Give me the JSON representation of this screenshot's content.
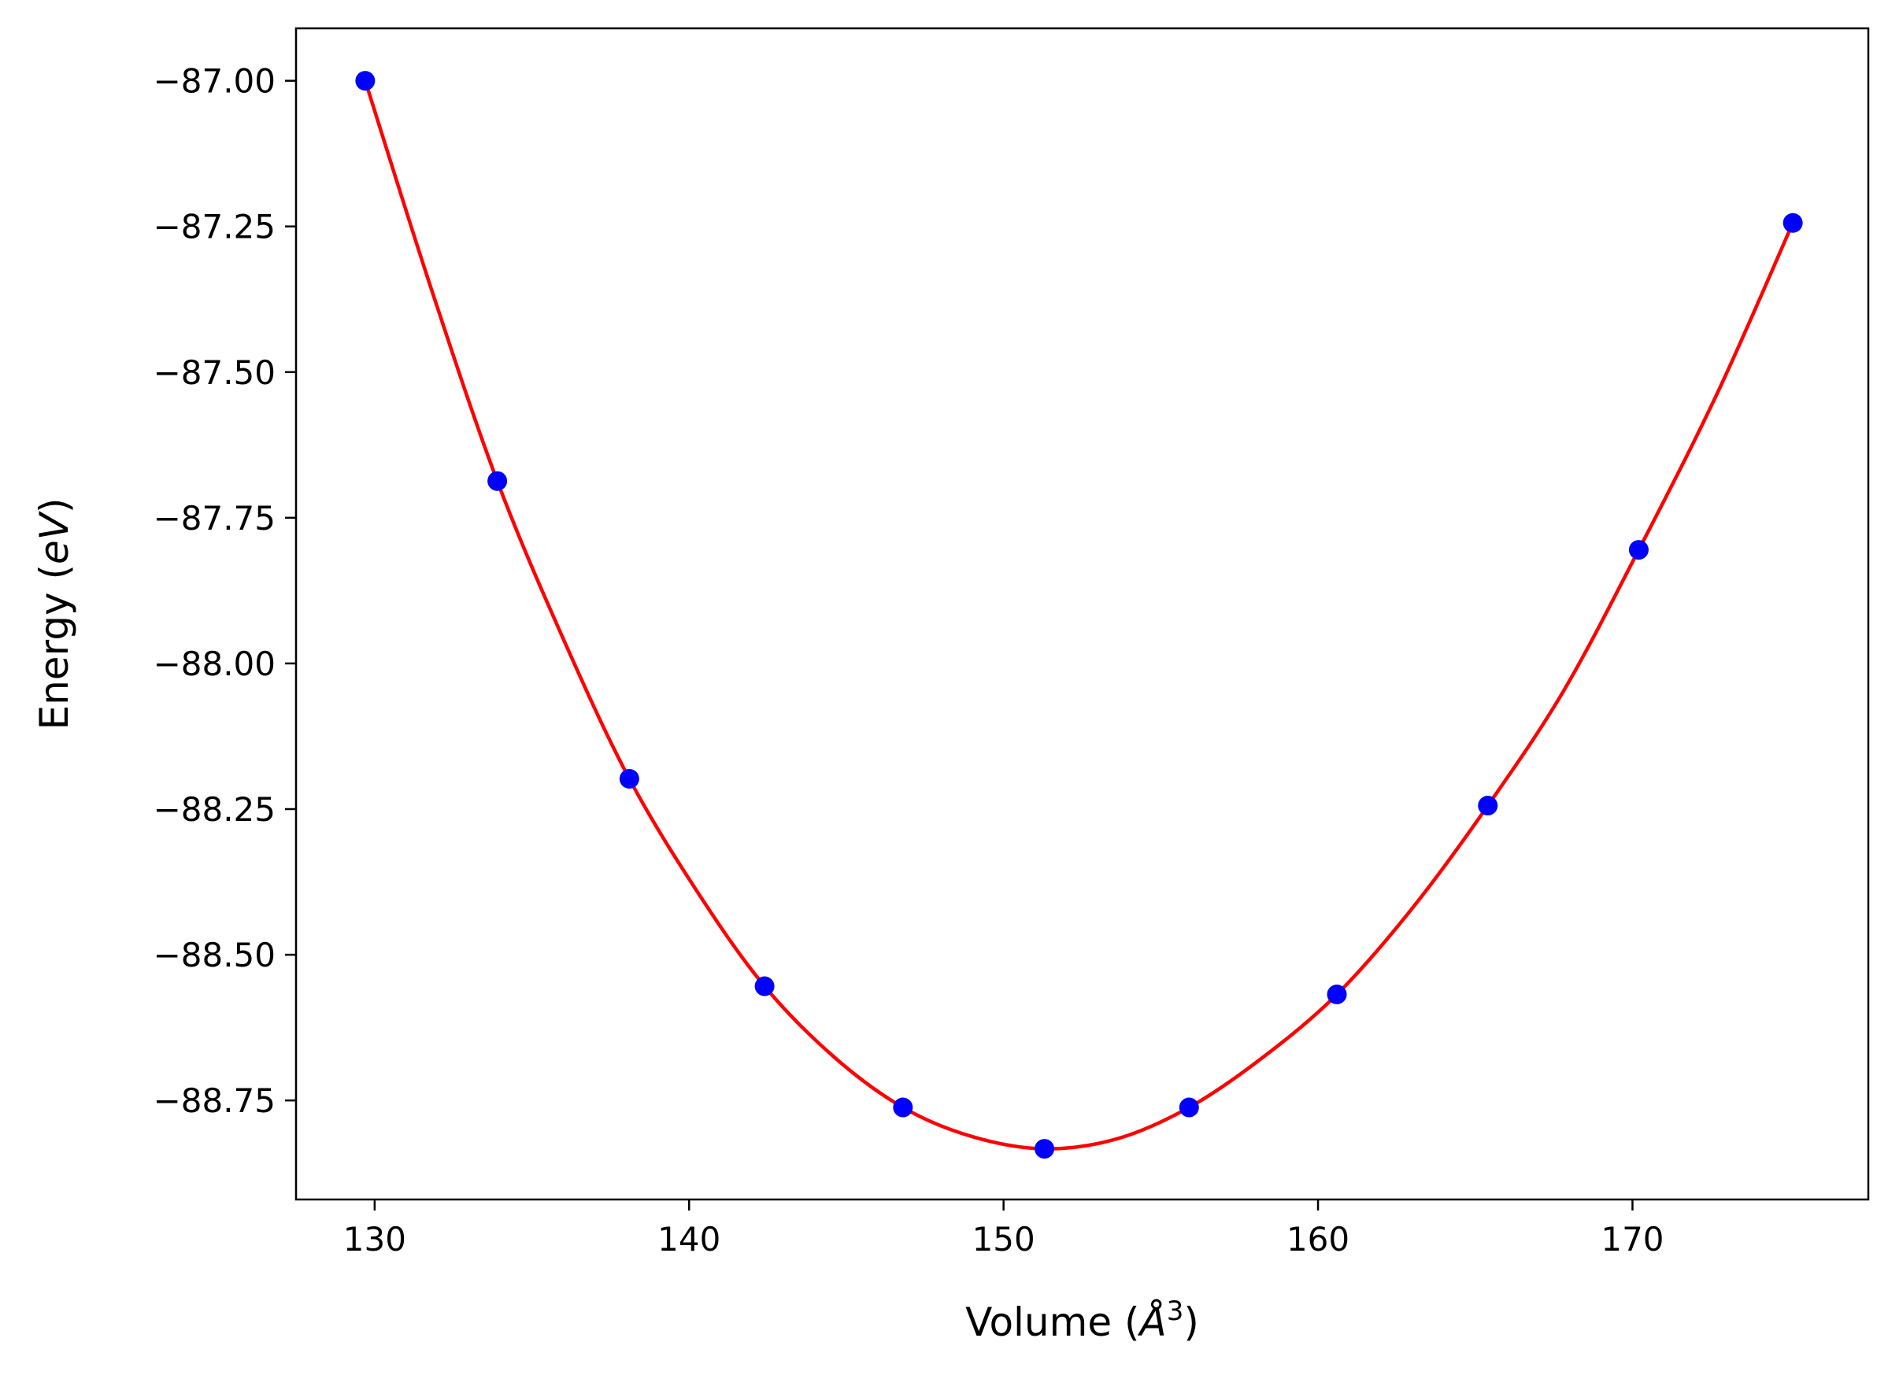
{
  "chart_data": {
    "type": "line",
    "title": "",
    "xlabel": {
      "text": "Volume (",
      "italic": "Å",
      "sup": "3",
      "close": ")"
    },
    "ylabel": {
      "text": "Energy (",
      "italic": "eV",
      "close": ")"
    },
    "xlim": [
      127.5,
      177.5
    ],
    "ylim": [
      -88.92,
      -86.91
    ],
    "xticks": [
      130,
      140,
      150,
      160,
      170
    ],
    "xtick_labels": [
      "130",
      "140",
      "150",
      "160",
      "170"
    ],
    "yticks": [
      -87.0,
      -87.25,
      -87.5,
      -87.75,
      -88.0,
      -88.25,
      -88.5,
      -88.75
    ],
    "ytick_labels": [
      "−87.00",
      "−87.25",
      "−87.50",
      "−87.75",
      "−88.00",
      "−88.25",
      "−88.50",
      "−88.75"
    ],
    "grid": false,
    "legend": "none",
    "series": [
      {
        "kind": "line",
        "color": "#ff0000",
        "x": [
          129.7,
          131.8,
          133.9,
          136.0,
          138.1,
          140.3,
          142.4,
          144.6,
          146.8,
          149.0,
          151.3,
          153.6,
          155.9,
          158.2,
          160.6,
          163.0,
          165.4,
          167.8,
          170.2,
          172.7,
          175.1
        ],
        "y": [
          -87.0,
          -87.357,
          -87.687,
          -87.958,
          -88.198,
          -88.395,
          -88.554,
          -88.675,
          -88.762,
          -88.812,
          -88.833,
          -88.816,
          -88.762,
          -88.678,
          -88.568,
          -88.42,
          -88.244,
          -88.048,
          -87.805,
          -87.536,
          -87.244
        ]
      },
      {
        "kind": "scatter",
        "color": "#0000ff",
        "x": [
          129.7,
          133.9,
          138.1,
          142.4,
          146.8,
          151.3,
          155.9,
          160.6,
          165.4,
          170.2,
          175.1
        ],
        "y": [
          -87.0,
          -87.687,
          -88.198,
          -88.554,
          -88.762,
          -88.833,
          -88.762,
          -88.568,
          -88.244,
          -87.805,
          -87.244
        ]
      }
    ]
  }
}
